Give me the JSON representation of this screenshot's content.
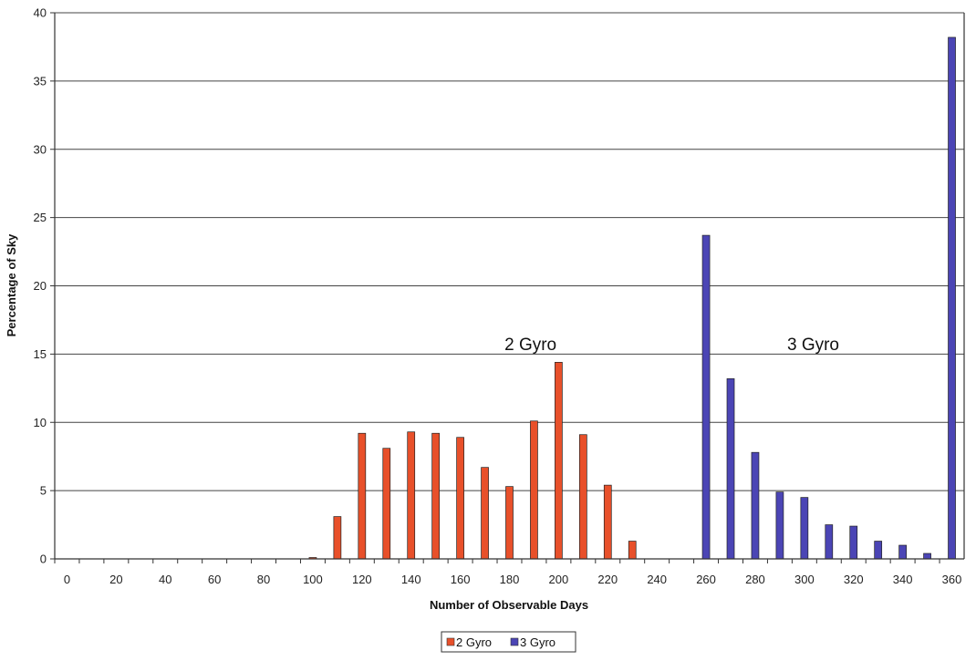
{
  "chart_data": {
    "type": "bar",
    "title": "",
    "xlabel": "Number of Observable Days",
    "ylabel": "Percentage of Sky",
    "ylim": [
      0,
      40
    ],
    "yticks": [
      0,
      5,
      10,
      15,
      20,
      25,
      30,
      35,
      40
    ],
    "categories": [
      0,
      10,
      20,
      30,
      40,
      50,
      60,
      70,
      80,
      90,
      100,
      110,
      120,
      130,
      140,
      150,
      160,
      170,
      180,
      190,
      200,
      210,
      220,
      230,
      240,
      250,
      260,
      270,
      280,
      290,
      300,
      310,
      320,
      330,
      340,
      350,
      360
    ],
    "xtick_labels": [
      "0",
      "20",
      "40",
      "60",
      "80",
      "100",
      "120",
      "140",
      "160",
      "180",
      "200",
      "220",
      "240",
      "260",
      "280",
      "300",
      "320",
      "340",
      "360"
    ],
    "grid": true,
    "legend_position": "bottom",
    "series": [
      {
        "name": "2 Gyro",
        "color": "#e8502a",
        "values": [
          0,
          0,
          0,
          0,
          0,
          0,
          0,
          0,
          0,
          0,
          0.1,
          3.1,
          9.2,
          8.1,
          9.3,
          9.2,
          8.9,
          6.7,
          5.3,
          10.1,
          14.4,
          9.1,
          5.4,
          1.3,
          0,
          0,
          0,
          0,
          0,
          0,
          0,
          0,
          0,
          0,
          0,
          0,
          0
        ]
      },
      {
        "name": "3 Gyro",
        "color": "#4b45b5",
        "values": [
          0,
          0,
          0,
          0,
          0,
          0,
          0,
          0,
          0,
          0,
          0,
          0,
          0,
          0,
          0,
          0,
          0,
          0,
          0,
          0,
          0,
          0,
          0,
          0,
          0,
          0,
          23.7,
          13.2,
          7.8,
          4.9,
          4.5,
          2.5,
          2.4,
          1.3,
          1.0,
          0.4,
          38.2
        ]
      }
    ],
    "annotations": [
      {
        "text": "2 Gyro",
        "x": 178,
        "y": 15.3
      },
      {
        "text": "3 Gyro",
        "x": 293,
        "y": 15.3
      }
    ]
  }
}
